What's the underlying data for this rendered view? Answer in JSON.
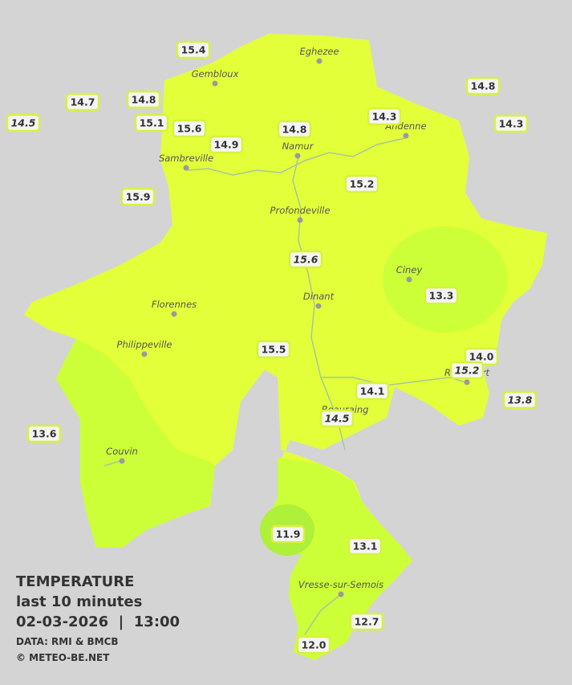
{
  "cities": [
    "Eghezee",
    "Gembloux",
    "Andenne",
    "Namur",
    "Sambreville",
    "Profondeville",
    "Ciney",
    "Dinant",
    "Florennes",
    "Philippeville",
    "Rochefort",
    "Beauraing",
    "Couvin",
    "Vresse-sur-Semois"
  ],
  "stations": [
    {
      "label": "15.4"
    },
    {
      "label": "14.7"
    },
    {
      "label": "14.5",
      "italic": true
    },
    {
      "label": "14.8"
    },
    {
      "label": "15.1"
    },
    {
      "label": "15.6"
    },
    {
      "label": "14.9"
    },
    {
      "label": "14.8"
    },
    {
      "label": "14.3"
    },
    {
      "label": "14.8"
    },
    {
      "label": "14.3"
    },
    {
      "label": "15.9"
    },
    {
      "label": "15.2"
    },
    {
      "label": "15.6",
      "italic": true
    },
    {
      "label": "13.3"
    },
    {
      "label": "15.5"
    },
    {
      "label": "14.0"
    },
    {
      "label": "15.2",
      "italic": true
    },
    {
      "label": "14.1"
    },
    {
      "label": "13.8",
      "italic": true
    },
    {
      "label": "14.5",
      "italic": true
    },
    {
      "label": "13.6"
    },
    {
      "label": "11.9"
    },
    {
      "label": "13.1"
    },
    {
      "label": "12.7"
    },
    {
      "label": "12.0"
    }
  ],
  "legend": {
    "title": "TEMPERATURE",
    "period": "last 10 minutes",
    "timestamp": "02-03-2026  |  13:00",
    "source": "DATA: RMI & BMCB",
    "credit": "© METEO-BE.NET"
  }
}
